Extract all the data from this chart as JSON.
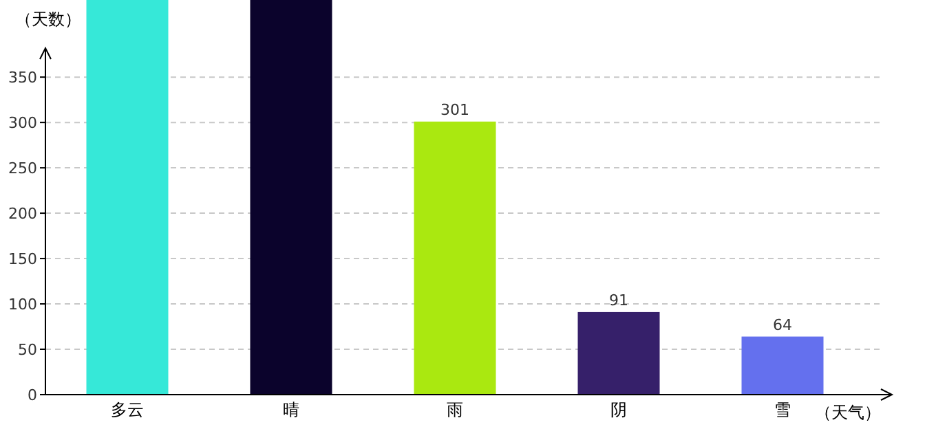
{
  "chart_data": {
    "type": "bar",
    "xlabel": "（天气）",
    "ylabel": "（天数）",
    "categories": [
      "多云",
      "晴",
      "雨",
      "阴",
      "雪"
    ],
    "values": [
      435,
      435,
      301,
      91,
      64
    ],
    "colors": [
      "#36e8d8",
      "#0b032c",
      "#aae810",
      "#36206a",
      "#6470ee"
    ],
    "value_labels": [
      null,
      null,
      "301",
      "91",
      "64"
    ],
    "ylim": [
      0,
      435
    ],
    "yticks": [
      0,
      50,
      100,
      150,
      200,
      250,
      300,
      350
    ],
    "grid": "y"
  }
}
